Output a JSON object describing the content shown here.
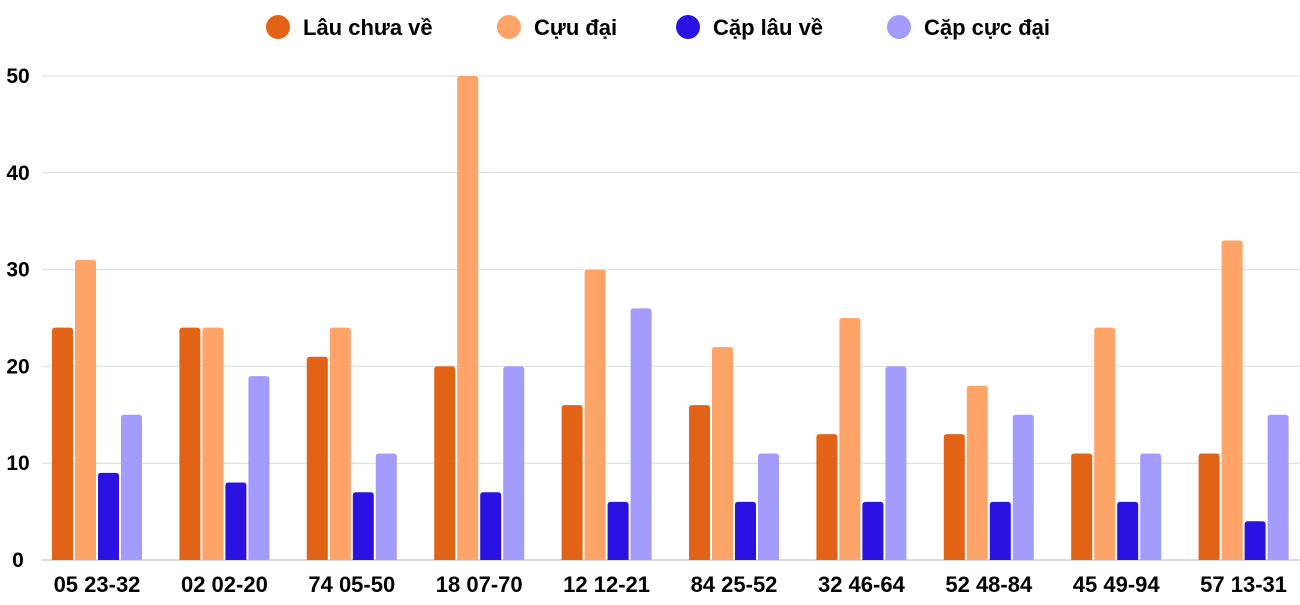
{
  "chart_data": {
    "type": "bar",
    "title": "",
    "xlabel": "",
    "ylabel": "",
    "ylim": [
      0,
      50
    ],
    "yticks": [
      0,
      10,
      20,
      30,
      40,
      50
    ],
    "grid": true,
    "legend_position": "top-center",
    "categories": [
      "05 23-32",
      "02 02-20",
      "74 05-50",
      "18 07-70",
      "12 12-21",
      "84 25-52",
      "32 46-64",
      "52 48-84",
      "45 49-94",
      "57 13-31"
    ],
    "series": [
      {
        "name": "Lâu chưa về",
        "color": "#E26316",
        "values": [
          24,
          24,
          21,
          20,
          16,
          16,
          13,
          13,
          11,
          11
        ]
      },
      {
        "name": "Cựu đại",
        "color": "#FFA468",
        "values": [
          31,
          24,
          24,
          50,
          30,
          22,
          25,
          18,
          24,
          33
        ]
      },
      {
        "name": "Cặp lâu về",
        "color": "#2A12E3",
        "values": [
          9,
          8,
          7,
          7,
          6,
          6,
          6,
          6,
          6,
          4
        ]
      },
      {
        "name": "Cặp cực đại",
        "color": "#A39BFD",
        "values": [
          15,
          19,
          11,
          20,
          26,
          11,
          20,
          15,
          11,
          15
        ]
      }
    ]
  }
}
